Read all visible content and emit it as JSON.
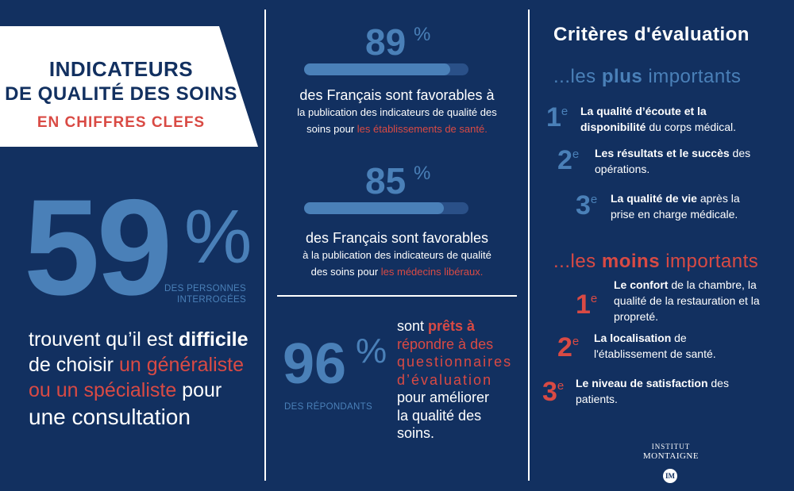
{
  "banner": {
    "title_line1": "INDICATEURS",
    "title_line2": "DE QUALITÉ DES SOINS",
    "subtitle": "EN CHIFFRES CLEFS"
  },
  "left": {
    "big_number": "59",
    "pct": "%",
    "caption_line1": "DES PERSONNES",
    "caption_line2": "INTERROGÉES",
    "text_a": "trouvent qu’il est ",
    "text_b": "difficile",
    "text_c": "de choisir ",
    "text_d": "un généraliste",
    "text_e": "ou un spécialiste",
    "text_f": " pour",
    "text_g": "une consultation"
  },
  "middle": {
    "stat1": {
      "number": "89",
      "pct": "%",
      "progress": 0.89,
      "lead": "des Français sont favorables à",
      "line2": "la publication des indicateurs de qualité des",
      "line3a": "soins pour ",
      "line3b": "les établissements de santé."
    },
    "stat2": {
      "number": "85",
      "pct": "%",
      "progress": 0.85,
      "lead": "des Français sont favorables",
      "line2": "à la publication des indicateurs de qualité",
      "line3a": "des soins pour ",
      "line3b": "les médecins libéraux."
    },
    "stat3": {
      "number": "96",
      "pct": "%",
      "caption": "DES RÉPONDANTS",
      "t1a": "sont ",
      "t1b": "prêts à",
      "t2": "répondre à des",
      "t3": "questionnaires",
      "t4": "d’évaluation",
      "t5": "pour améliorer",
      "t6": "la qualité des",
      "t7": "soins."
    }
  },
  "right": {
    "heading": "Critères d'évaluation",
    "most": {
      "prefix": "...les ",
      "strong": "plus",
      "suffix": " importants",
      "items": [
        {
          "rank": "1",
          "sup": "e",
          "bold1": "La qualité d’écoute et la",
          "bold2": "disponibilité",
          "rest2": " du corps médical."
        },
        {
          "rank": "2",
          "sup": "e",
          "bold1": "Les résultats et le succès",
          "rest1": " des",
          "line2": "opérations."
        },
        {
          "rank": "3",
          "sup": "e",
          "bold1": "La qualité de vie",
          "rest1": " après la",
          "line2": "prise en charge médicale."
        }
      ]
    },
    "least": {
      "prefix": "...les ",
      "strong": "moins",
      "suffix": " importants",
      "items": [
        {
          "rank": "1",
          "sup": "e",
          "bold1": "Le confort",
          "rest1": " de la chambre, la",
          "line2": "qualité de la restauration et la",
          "line3": "propreté."
        },
        {
          "rank": "2",
          "sup": "e",
          "bold1": "La localisation",
          "rest1": " de",
          "line2": "l'établissement de santé."
        },
        {
          "rank": "3",
          "sup": "e",
          "bold1": "Le niveau de satisfaction",
          "rest1": " des",
          "line2": "patients."
        }
      ]
    }
  },
  "logo": {
    "line1": "INSTITUT",
    "line2": "MONTAIGNE",
    "monogram": "IM"
  },
  "colors": {
    "background": "#123060",
    "accent_blue": "#4a80b8",
    "accent_red": "#d94a44",
    "white": "#ffffff"
  }
}
